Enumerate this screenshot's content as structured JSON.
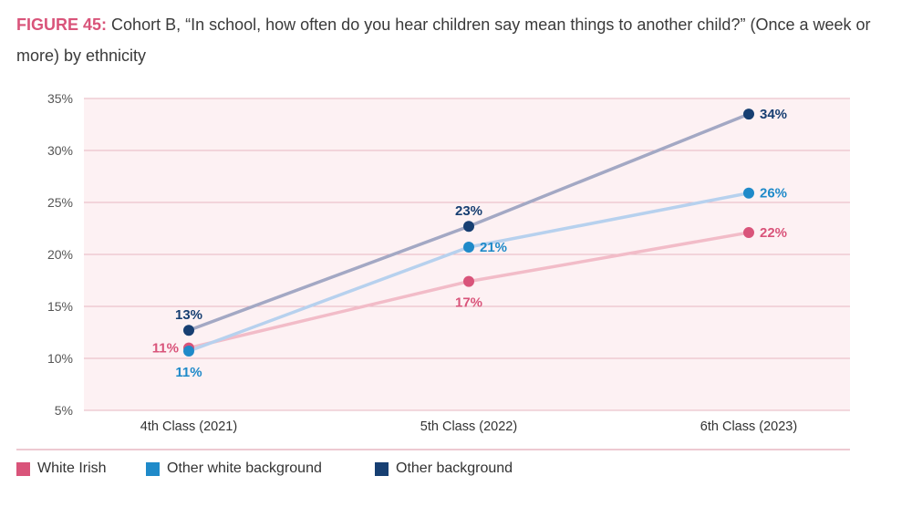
{
  "title": {
    "figure_label": "FIGURE 45:",
    "text": "Cohort B, “In school, how often do you hear children say mean things to another child?” (Once a week or more) by ethnicity"
  },
  "chart_data": {
    "type": "line",
    "title": "Cohort B, “In school, how often do you hear children say mean things to another child?” (Once a week or more) by ethnicity",
    "categories": [
      "4th Class (2021)",
      "5th Class (2022)",
      "6th Class (2023)"
    ],
    "ylim": [
      5,
      35
    ],
    "yticks": [
      5,
      10,
      15,
      20,
      25,
      30,
      35
    ],
    "ytick_labels": [
      "5%",
      "10%",
      "15%",
      "20%",
      "25%",
      "30%",
      "35%"
    ],
    "grid": true,
    "legend_position": "bottom",
    "series": [
      {
        "name": "White Irish",
        "values": [
          11,
          17.4,
          22.1
        ],
        "labels": [
          "11%",
          "17%",
          "22%"
        ],
        "point_color": "#d9547a",
        "line_color": "#f2bcc8",
        "label_pos": [
          "left",
          "below",
          "right"
        ]
      },
      {
        "name": "Other white background",
        "values": [
          10.7,
          20.7,
          25.9
        ],
        "labels": [
          "11%",
          "21%",
          "26%"
        ],
        "point_color": "#1f8ac9",
        "line_color": "#b7d1ee",
        "label_pos": [
          "below",
          "right",
          "right"
        ]
      },
      {
        "name": "Other background",
        "values": [
          12.7,
          22.7,
          33.5
        ],
        "labels": [
          "13%",
          "23%",
          "34%"
        ],
        "point_color": "#173f72",
        "line_color": "#a3a8c4",
        "label_pos": [
          "above",
          "above",
          "right"
        ]
      }
    ]
  },
  "colors": {
    "plot_background": "#fdf1f3",
    "gridline": "#e7b7c2",
    "title_accent": "#d9547a"
  }
}
